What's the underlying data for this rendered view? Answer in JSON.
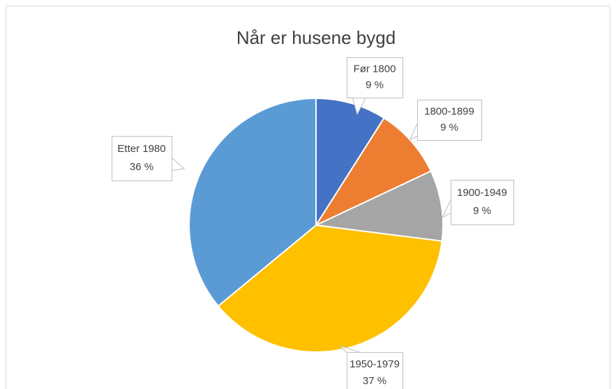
{
  "chart_data": {
    "type": "pie",
    "title": "Når er husene bygd",
    "categories": [
      "Før 1800",
      "1800-1899",
      "1900-1949",
      "1950-1979",
      "Etter 1980"
    ],
    "values": [
      9,
      9,
      9,
      37,
      36
    ],
    "value_labels": [
      "9 %",
      "9 %",
      "9 %",
      "37 %",
      "36 %"
    ],
    "colors": [
      "#4472c4",
      "#ed7d31",
      "#a5a5a5",
      "#ffc000",
      "#5b9bd5"
    ]
  }
}
